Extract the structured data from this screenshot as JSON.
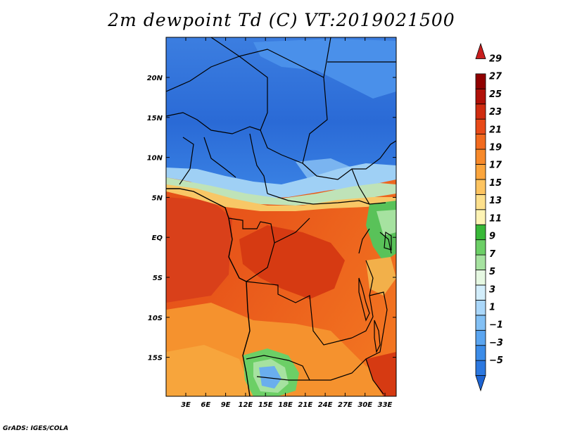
{
  "title": "2m dewpoint Td (C) VT:2019021500",
  "credit": "GrADS: IGES/COLA",
  "lat_labels": [
    "20N",
    "15N",
    "10N",
    "5N",
    "EQ",
    "5S",
    "10S",
    "15S"
  ],
  "lon_labels": [
    "3E",
    "6E",
    "9E",
    "12E",
    "15E",
    "18E",
    "21E",
    "24E",
    "27E",
    "30E",
    "33E"
  ],
  "colorbar": {
    "labels": [
      "29",
      "27",
      "25",
      "23",
      "21",
      "19",
      "17",
      "15",
      "13",
      "11",
      "9",
      "7",
      "5",
      "3",
      "1",
      "−1",
      "−3",
      "−5"
    ],
    "colors": [
      "#1e64d2",
      "#2c78e0",
      "#3c8ce8",
      "#5aa5f0",
      "#82c0f5",
      "#aad7fa",
      "#d2edfb",
      "#e6f8e2",
      "#a6e2a0",
      "#6ccf66",
      "#38b838",
      "#fdf3b4",
      "#fde08c",
      "#fdc460",
      "#fba53c",
      "#f7892a",
      "#f26a1e",
      "#e84a18",
      "#d02c10",
      "#b01008",
      "#900000",
      "#c81e1e"
    ]
  }
}
